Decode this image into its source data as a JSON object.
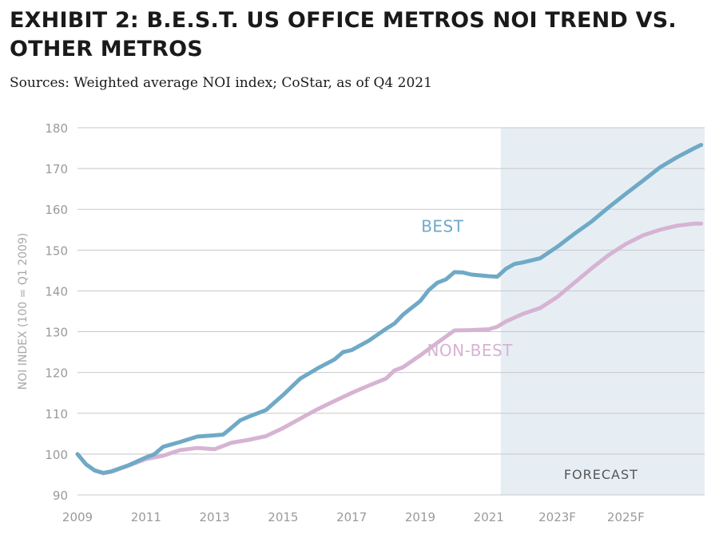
{
  "title": "EXHIBIT 2: B.E.S.T. US OFFICE METROS NOI TREND VS. OTHER METROS",
  "subtitle": "Sources: Weighted average NOI index; CoStar, as of Q4 2021",
  "colors": {
    "best": "#6fa9c6",
    "non_best": "#d6b3d3",
    "forecast_band": "#e6eef4",
    "grid": "#c8c8c8"
  },
  "chart_data": {
    "type": "line",
    "ylabel": "NOI INDEX (100 = Q1 2009)",
    "ylim": [
      90,
      180
    ],
    "y_ticks": [
      90,
      100,
      110,
      120,
      130,
      140,
      150,
      160,
      170,
      180
    ],
    "xlim": [
      2009,
      2027.3
    ],
    "x_ticks": [
      {
        "value": 2009,
        "label": "2009"
      },
      {
        "value": 2011,
        "label": "2011"
      },
      {
        "value": 2013,
        "label": "2013"
      },
      {
        "value": 2015,
        "label": "2015"
      },
      {
        "value": 2017,
        "label": "2017"
      },
      {
        "value": 2019,
        "label": "2019"
      },
      {
        "value": 2021,
        "label": "2021"
      },
      {
        "value": 2023,
        "label": "2023F"
      },
      {
        "value": 2025,
        "label": "2025F"
      }
    ],
    "forecast": {
      "start": 2021.35,
      "end": 2027.3,
      "label": "FORECAST"
    },
    "grid": true,
    "series": [
      {
        "name": "BEST",
        "label_at": [
          2019.65,
          154.5
        ],
        "points": [
          [
            2009.0,
            100.0
          ],
          [
            2009.25,
            97.5
          ],
          [
            2009.5,
            96.0
          ],
          [
            2009.75,
            95.4
          ],
          [
            2010.0,
            95.8
          ],
          [
            2010.5,
            97.3
          ],
          [
            2011.0,
            99.2
          ],
          [
            2011.25,
            100.0
          ],
          [
            2011.5,
            101.8
          ],
          [
            2012.0,
            103.0
          ],
          [
            2012.5,
            104.3
          ],
          [
            2013.0,
            104.6
          ],
          [
            2013.25,
            104.8
          ],
          [
            2013.5,
            106.5
          ],
          [
            2013.75,
            108.3
          ],
          [
            2014.0,
            109.2
          ],
          [
            2014.5,
            110.8
          ],
          [
            2015.0,
            114.5
          ],
          [
            2015.5,
            118.5
          ],
          [
            2016.0,
            121.0
          ],
          [
            2016.5,
            123.2
          ],
          [
            2016.75,
            125.0
          ],
          [
            2017.0,
            125.5
          ],
          [
            2017.5,
            127.8
          ],
          [
            2018.0,
            130.7
          ],
          [
            2018.25,
            132.0
          ],
          [
            2018.5,
            134.2
          ],
          [
            2019.0,
            137.5
          ],
          [
            2019.25,
            140.2
          ],
          [
            2019.5,
            142.0
          ],
          [
            2019.75,
            142.8
          ],
          [
            2020.0,
            144.6
          ],
          [
            2020.25,
            144.5
          ],
          [
            2020.5,
            144.0
          ],
          [
            2021.0,
            143.6
          ],
          [
            2021.25,
            143.5
          ],
          [
            2021.5,
            145.4
          ],
          [
            2021.75,
            146.6
          ],
          [
            2022.0,
            147.0
          ],
          [
            2022.5,
            148.0
          ],
          [
            2023.0,
            150.8
          ],
          [
            2023.5,
            154.0
          ],
          [
            2024.0,
            157.0
          ],
          [
            2024.5,
            160.5
          ],
          [
            2025.0,
            163.8
          ],
          [
            2025.5,
            167.0
          ],
          [
            2026.0,
            170.3
          ],
          [
            2026.5,
            172.8
          ],
          [
            2027.0,
            175.0
          ],
          [
            2027.2,
            175.8
          ]
        ]
      },
      {
        "name": "NON-BEST",
        "label_at": [
          2020.45,
          124.0
        ],
        "points": [
          [
            2009.0,
            100.0
          ],
          [
            2009.25,
            97.5
          ],
          [
            2009.5,
            96.0
          ],
          [
            2009.75,
            95.3
          ],
          [
            2010.0,
            95.7
          ],
          [
            2010.5,
            97.2
          ],
          [
            2011.0,
            98.8
          ],
          [
            2011.5,
            99.6
          ],
          [
            2012.0,
            101.0
          ],
          [
            2012.5,
            101.5
          ],
          [
            2013.0,
            101.2
          ],
          [
            2013.5,
            102.8
          ],
          [
            2014.0,
            103.5
          ],
          [
            2014.5,
            104.4
          ],
          [
            2015.0,
            106.4
          ],
          [
            2015.5,
            108.7
          ],
          [
            2016.0,
            111.0
          ],
          [
            2016.5,
            113.0
          ],
          [
            2017.0,
            115.0
          ],
          [
            2017.5,
            116.8
          ],
          [
            2018.0,
            118.5
          ],
          [
            2018.25,
            120.5
          ],
          [
            2018.5,
            121.3
          ],
          [
            2019.0,
            124.2
          ],
          [
            2019.5,
            127.3
          ],
          [
            2020.0,
            130.3
          ],
          [
            2020.5,
            130.4
          ],
          [
            2021.0,
            130.6
          ],
          [
            2021.25,
            131.2
          ],
          [
            2021.5,
            132.5
          ],
          [
            2022.0,
            134.4
          ],
          [
            2022.5,
            135.8
          ],
          [
            2023.0,
            138.5
          ],
          [
            2023.5,
            142.0
          ],
          [
            2024.0,
            145.5
          ],
          [
            2024.5,
            148.8
          ],
          [
            2025.0,
            151.5
          ],
          [
            2025.5,
            153.6
          ],
          [
            2026.0,
            155.0
          ],
          [
            2026.5,
            156.0
          ],
          [
            2027.0,
            156.5
          ],
          [
            2027.2,
            156.5
          ]
        ]
      }
    ]
  }
}
